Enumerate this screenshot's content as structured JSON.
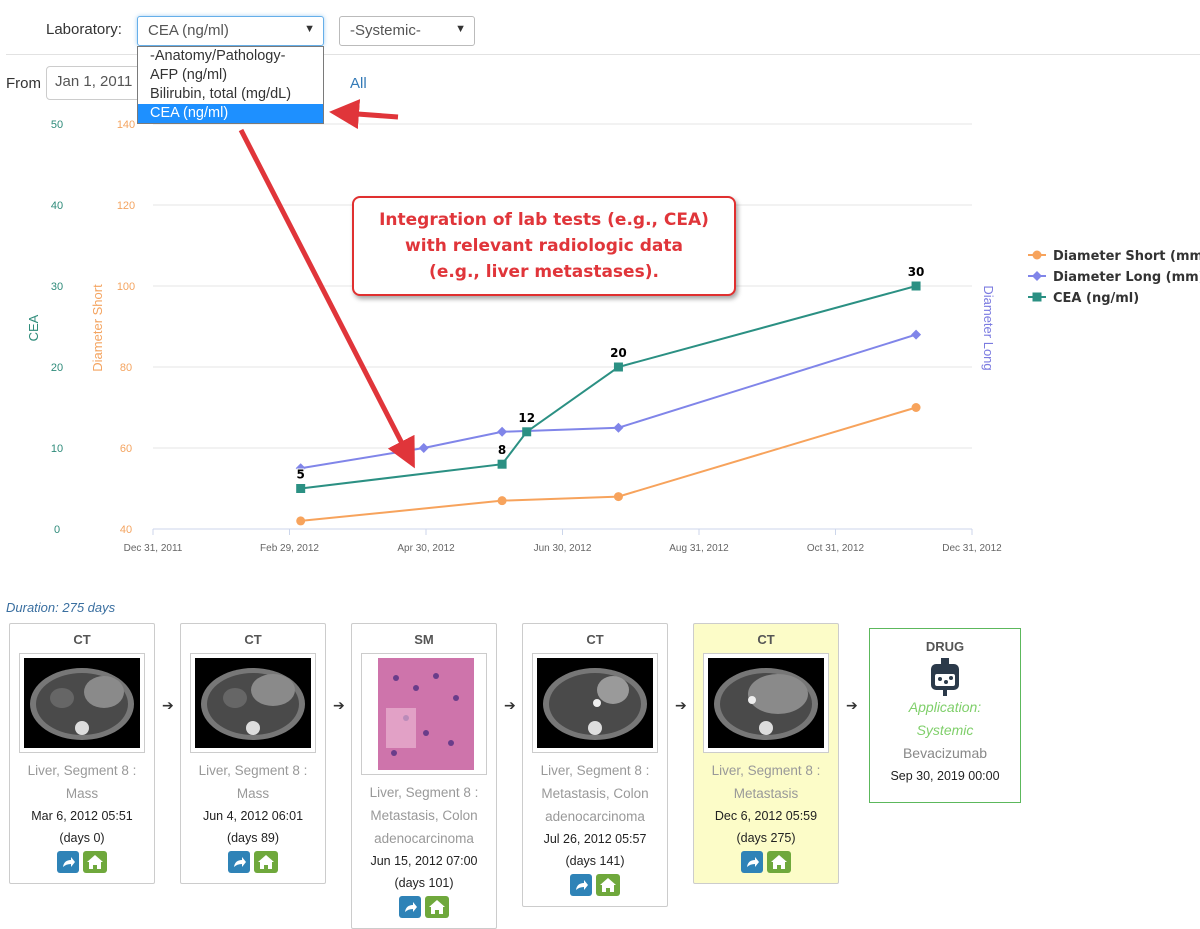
{
  "filters": {
    "lab_label": "Laboratory:",
    "lab_selected": "CEA (ng/ml)",
    "lab_options": [
      "-Anatomy/Pathology-",
      "AFP (ng/ml)",
      "Bilirubin, total (mg/dL)",
      "CEA (ng/ml)"
    ],
    "systemic_selected": "-Systemic-",
    "from_label": "From",
    "from_value": "Jan 1, 2011",
    "all_link": "All"
  },
  "callout": {
    "line1": "Integration of lab tests (e.g., CEA)",
    "line2": "with relevant radiologic data",
    "line3": "(e.g., liver metastases)."
  },
  "chart_data": {
    "type": "line",
    "x_ticks": [
      "Dec 31, 2011",
      "Feb 29, 2012",
      "Apr 30, 2012",
      "Jun 30, 2012",
      "Aug 31, 2012",
      "Oct 31, 2012",
      "Dec 31, 2012"
    ],
    "x_range": [
      "2011-12-31",
      "2012-12-31"
    ],
    "y_axes": {
      "cea": {
        "label": "CEA",
        "range": [
          0,
          50
        ],
        "ticks": [
          "0",
          "10",
          "20",
          "30",
          "40",
          "50"
        ],
        "color": "#2e8b7a"
      },
      "short": {
        "label": "Diameter Short",
        "range": [
          40,
          140
        ],
        "ticks": [
          "40",
          "60",
          "80",
          "100",
          "120",
          "140"
        ],
        "color": "#f4a460"
      },
      "long": {
        "label": "Diameter Long",
        "color": "#7b7be0"
      }
    },
    "series": [
      {
        "name": "Diameter Short (mm)",
        "color": "#f7a35c",
        "marker": "circle",
        "axis": "short",
        "points": [
          [
            "2012-03-06",
            42
          ],
          [
            "2012-06-04",
            47
          ],
          [
            "2012-07-26",
            48
          ],
          [
            "2012-12-06",
            70
          ]
        ]
      },
      {
        "name": "Diameter Long (mm)",
        "color": "#8085e9",
        "marker": "diamond",
        "axis": "short",
        "points": [
          [
            "2012-03-06",
            55
          ],
          [
            "2012-04-30",
            60
          ],
          [
            "2012-06-04",
            64
          ],
          [
            "2012-07-26",
            65
          ],
          [
            "2012-12-06",
            88
          ]
        ]
      },
      {
        "name": "CEA (ng/ml)",
        "color": "#2b9083",
        "marker": "square",
        "axis": "cea",
        "points": [
          [
            "2012-03-06",
            5
          ],
          [
            "2012-06-04",
            8
          ],
          [
            "2012-06-15",
            12
          ],
          [
            "2012-07-26",
            20
          ],
          [
            "2012-12-06",
            30
          ]
        ],
        "labels": [
          "5",
          "8",
          "12",
          "20",
          "30"
        ]
      }
    ],
    "legend_position": "right",
    "grid": true
  },
  "timeline": {
    "duration": "Duration: 275 days",
    "items": [
      {
        "modality": "CT",
        "loc1": "Liver, Segment 8 :",
        "loc2": "Mass",
        "loc3": "",
        "date": "Mar 6, 2012 05:51",
        "days": "(days 0)",
        "image": "ct-scan-image"
      },
      {
        "modality": "CT",
        "loc1": "Liver, Segment 8 :",
        "loc2": "Mass",
        "loc3": "",
        "date": "Jun 4, 2012 06:01",
        "days": "(days 89)",
        "image": "ct-scan-image"
      },
      {
        "modality": "SM",
        "loc1": "Liver, Segment 8 :",
        "loc2": "Metastasis, Colon",
        "loc3": "adenocarcinoma",
        "date": "Jun 15, 2012 07:00",
        "days": "(days 101)",
        "image": "histology-image"
      },
      {
        "modality": "CT",
        "loc1": "Liver, Segment 8 :",
        "loc2": "Metastasis, Colon",
        "loc3": "adenocarcinoma",
        "date": "Jul 26, 2012 05:57",
        "days": "(days 141)",
        "image": "ct-scan-image"
      },
      {
        "modality": "CT",
        "loc1": "Liver, Segment 8 :",
        "loc2": "Metastasis",
        "loc3": "",
        "date": "Dec 6, 2012 05:59",
        "days": "(days 275)",
        "image": "ct-scan-image"
      }
    ],
    "drug": {
      "title": "DRUG",
      "application": "Application:",
      "application2": "Systemic",
      "name": "Bevacizumab",
      "date": "Sep 30, 2019 00:00",
      "icon": "iv-bag-icon"
    }
  },
  "colors": {
    "accent_red": "#e0353a",
    "link_blue": "#337ab7",
    "share_button": "#2f83b7",
    "home_button": "#6fa83c",
    "highlight": "#fcfcc8"
  }
}
